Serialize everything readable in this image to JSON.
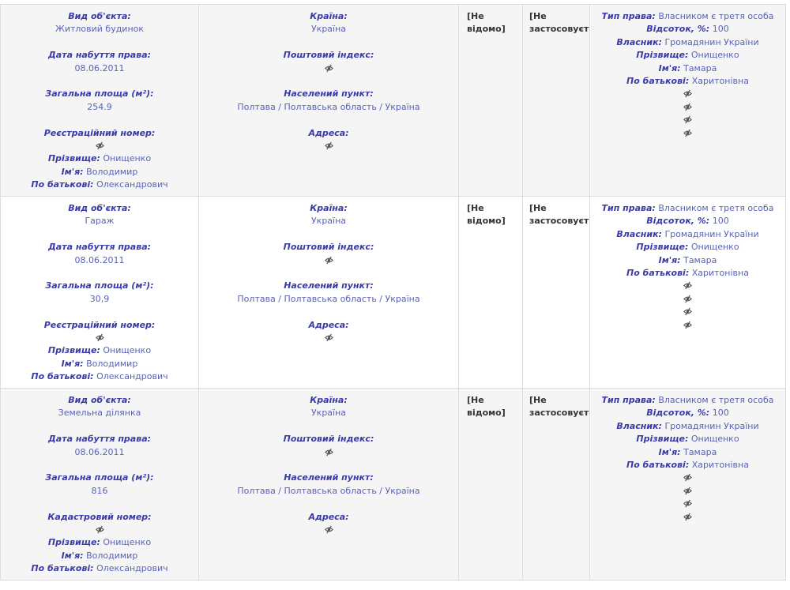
{
  "rows": [
    {
      "object": [
        {
          "label": "Вид об'єкта:",
          "value": "Житловий будинок"
        },
        {
          "label": "Дата набуття права:",
          "value": "08.06.2011"
        },
        {
          "label": "Загальна площа (м²):",
          "value": "254.9"
        },
        {
          "label": "Реєстраційний номер:"
        }
      ],
      "person": [
        {
          "label": "Прізвище:",
          "value": "Онищенко"
        },
        {
          "label": "Ім'я:",
          "value": "Володимир"
        },
        {
          "label": "По батькові:",
          "value": "Олександрович"
        }
      ],
      "location": [
        {
          "label": "Країна:",
          "value": "Україна"
        },
        {
          "label": "Поштовий індекс:"
        },
        {
          "label": "Населений пункт:",
          "value": "Полтава / Полтавська область / Україна"
        },
        {
          "label": "Адреса:"
        }
      ],
      "cost": "[Не відомо]",
      "cost_note": "[Не застосовується]",
      "rights": [
        {
          "label": "Тип права:",
          "value": "Власником є третя особа"
        },
        {
          "label": "Відсоток, %:",
          "value": "100"
        },
        {
          "label": "Власник:",
          "value": "Громадянин України"
        },
        {
          "label": "Прізвище:",
          "value": "Онищенко"
        },
        {
          "label": "Ім'я:",
          "value": "Тамара"
        },
        {
          "label": "По батькові:",
          "value": "Харитонівна"
        }
      ]
    },
    {
      "object": [
        {
          "label": "Вид об'єкта:",
          "value": "Гараж"
        },
        {
          "label": "Дата набуття права:",
          "value": "08.06.2011"
        },
        {
          "label": "Загальна площа (м²):",
          "value": "30,9"
        },
        {
          "label": "Реєстраційний номер:"
        }
      ],
      "person": [
        {
          "label": "Прізвище:",
          "value": "Онищенко"
        },
        {
          "label": "Ім'я:",
          "value": "Володимир"
        },
        {
          "label": "По батькові:",
          "value": "Олександрович"
        }
      ],
      "location": [
        {
          "label": "Країна:",
          "value": "Україна"
        },
        {
          "label": "Поштовий індекс:"
        },
        {
          "label": "Населений пункт:",
          "value": "Полтава / Полтавська область / Україна"
        },
        {
          "label": "Адреса:"
        }
      ],
      "cost": "[Не відомо]",
      "cost_note": "[Не застосовується]",
      "rights": [
        {
          "label": "Тип права:",
          "value": "Власником є третя особа"
        },
        {
          "label": "Відсоток, %:",
          "value": "100"
        },
        {
          "label": "Власник:",
          "value": "Громадянин України"
        },
        {
          "label": "Прізвище:",
          "value": "Онищенко"
        },
        {
          "label": "Ім'я:",
          "value": "Тамара"
        },
        {
          "label": "По батькові:",
          "value": "Харитонівна"
        }
      ]
    },
    {
      "object": [
        {
          "label": "Вид об'єкта:",
          "value": "Земельна ділянка"
        },
        {
          "label": "Дата набуття права:",
          "value": "08.06.2011"
        },
        {
          "label": "Загальна площа (м²):",
          "value": "816"
        },
        {
          "label": "Кадастровий номер:"
        }
      ],
      "person": [
        {
          "label": "Прізвище:",
          "value": "Онищенко"
        },
        {
          "label": "Ім'я:",
          "value": "Володимир"
        },
        {
          "label": "По батькові:",
          "value": "Олександрович"
        }
      ],
      "location": [
        {
          "label": "Країна:",
          "value": "Україна"
        },
        {
          "label": "Поштовий індекс:"
        },
        {
          "label": "Населений пункт:",
          "value": "Полтава / Полтавська область / Україна"
        },
        {
          "label": "Адреса:"
        }
      ],
      "cost": "[Не відомо]",
      "cost_note": "[Не застосовується]",
      "rights": [
        {
          "label": "Тип права:",
          "value": "Власником є третя особа"
        },
        {
          "label": "Відсоток, %:",
          "value": "100"
        },
        {
          "label": "Власник:",
          "value": "Громадянин України"
        },
        {
          "label": "Прізвище:",
          "value": "Онищенко"
        },
        {
          "label": "Ім'я:",
          "value": "Тамара"
        },
        {
          "label": "По батькові:",
          "value": "Харитонівна"
        }
      ]
    }
  ]
}
